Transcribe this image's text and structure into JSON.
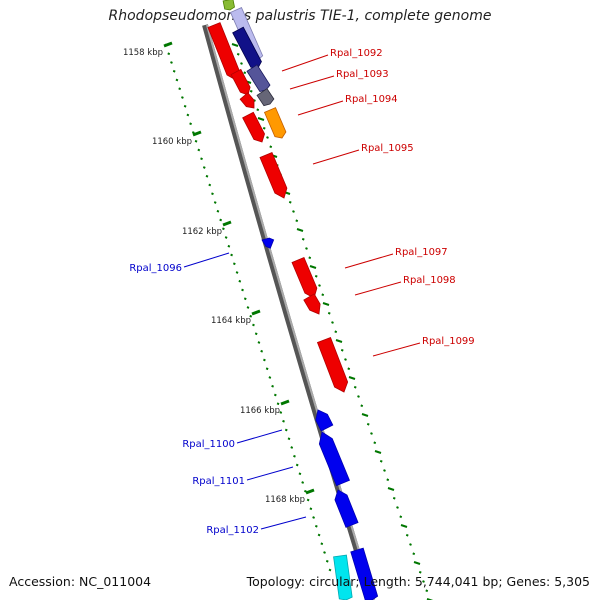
{
  "title": "Rhodopseudomonas palustris TIE-1, complete genome",
  "accession": "Accession: NC_011004",
  "summary": "Topology: circular; Length: 5,744,041 bp; Genes: 5,305",
  "colors": {
    "forward": "#cc0000",
    "reverse": "#0000cc",
    "tick": "#007700",
    "backbone": "#888888"
  },
  "ticks": [
    {
      "label": "1158 kbp"
    },
    {
      "label": "1160 kbp"
    },
    {
      "label": "1162 kbp"
    },
    {
      "label": "1164 kbp"
    },
    {
      "label": "1166 kbp"
    },
    {
      "label": "1168 kbp"
    }
  ],
  "genes": [
    {
      "name": "Rpal_1092",
      "strand": "forward"
    },
    {
      "name": "Rpal_1093",
      "strand": "forward"
    },
    {
      "name": "Rpal_1094",
      "strand": "forward"
    },
    {
      "name": "Rpal_1095",
      "strand": "forward"
    },
    {
      "name": "Rpal_1096",
      "strand": "reverse"
    },
    {
      "name": "Rpal_1097",
      "strand": "forward"
    },
    {
      "name": "Rpal_1098",
      "strand": "forward"
    },
    {
      "name": "Rpal_1099",
      "strand": "forward"
    },
    {
      "name": "Rpal_1100",
      "strand": "reverse"
    },
    {
      "name": "Rpal_1101",
      "strand": "reverse"
    },
    {
      "name": "Rpal_1102",
      "strand": "reverse"
    }
  ]
}
